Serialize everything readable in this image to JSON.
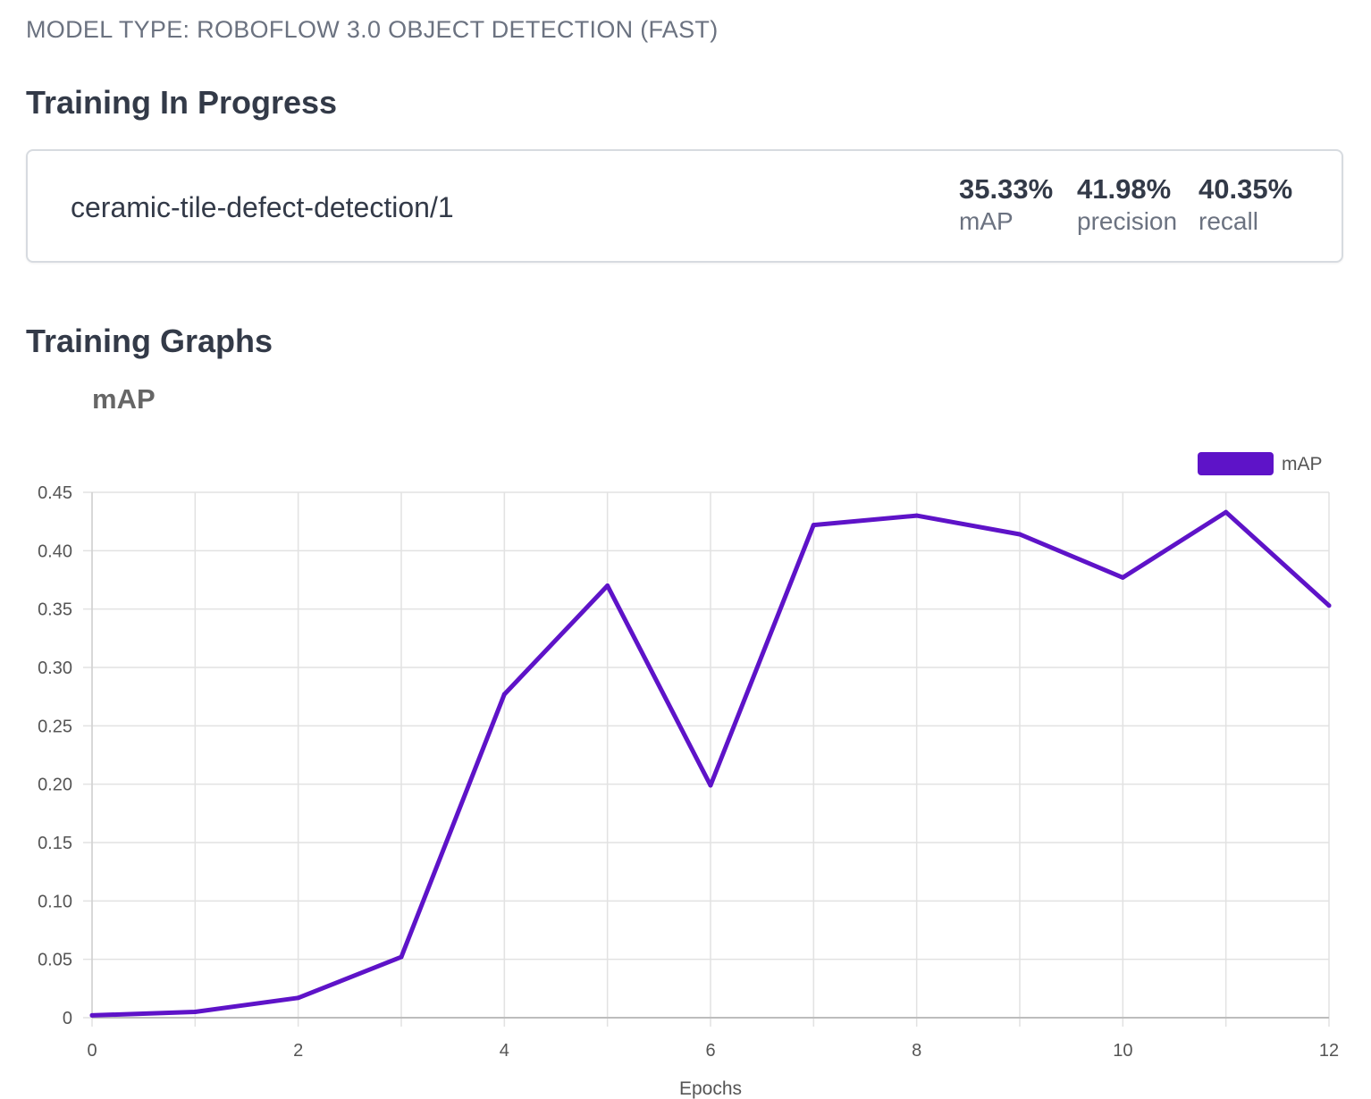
{
  "model_type": "MODEL TYPE: ROBOFLOW 3.0 OBJECT DETECTION (FAST)",
  "training_section": {
    "title": "Training In Progress"
  },
  "model_card": {
    "name": "ceramic-tile-defect-detection/1",
    "metrics": [
      {
        "value": "35.33%",
        "label": "mAP"
      },
      {
        "value": "41.98%",
        "label": "precision"
      },
      {
        "value": "40.35%",
        "label": "recall"
      }
    ]
  },
  "graphs_section": {
    "title": "Training Graphs"
  },
  "colors": {
    "series": "#5e13c8",
    "grid": "#e2e2e2",
    "text": "#333a48",
    "muted": "#6b7280"
  },
  "chart_data": {
    "type": "line",
    "title": "mAP",
    "xlabel": "Epochs",
    "ylabel": "",
    "xlim": [
      0,
      12
    ],
    "ylim": [
      0,
      0.45
    ],
    "x_ticks": [
      "0",
      "2",
      "4",
      "6",
      "8",
      "10",
      "12"
    ],
    "y_ticks": [
      "0",
      "0.05",
      "0.10",
      "0.15",
      "0.20",
      "0.25",
      "0.30",
      "0.35",
      "0.40",
      "0.45"
    ],
    "grid": true,
    "legend_position": "top-right",
    "series": [
      {
        "name": "mAP",
        "x": [
          0,
          1,
          2,
          3,
          4,
          5,
          6,
          7,
          8,
          9,
          10,
          11,
          12
        ],
        "values": [
          0.002,
          0.005,
          0.017,
          0.052,
          0.277,
          0.37,
          0.199,
          0.422,
          0.43,
          0.414,
          0.377,
          0.433,
          0.353
        ]
      }
    ]
  }
}
